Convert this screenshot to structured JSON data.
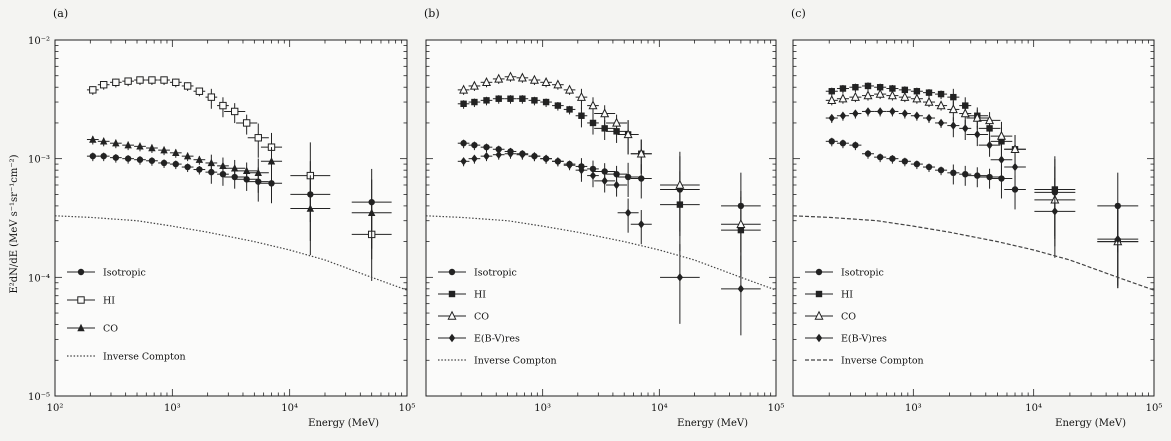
{
  "chart_data": [
    {
      "type": "scatter",
      "panel_label": "(a)",
      "xscale": "log",
      "yscale": "log",
      "xlim": [
        100,
        100000
      ],
      "ylim": [
        1e-05,
        0.01
      ],
      "xlabel": "Energy (MeV)",
      "ylabel": "E²dN/dE (MeV s⁻¹sr⁻¹cm⁻²)",
      "x_ticks": [
        "10²",
        "10³",
        "10⁴",
        "10⁵"
      ],
      "y_ticks": [
        "10⁻⁵",
        "10⁻⁴",
        "10⁻³",
        "10⁻²"
      ],
      "legend_position": "bottom-left",
      "series": [
        {
          "name": "Isotropic",
          "marker": "circle",
          "x": [
            210,
            260,
            330,
            420,
            530,
            670,
            850,
            1070,
            1350,
            1700,
            2150,
            2700,
            3400,
            4300,
            5400,
            7000,
            15000,
            50000
          ],
          "y": [
            0.00105,
            0.00105,
            0.00102,
            0.001,
            0.00098,
            0.00096,
            0.00092,
            0.0009,
            0.00085,
            0.00081,
            0.00077,
            0.00074,
            0.0007,
            0.00067,
            0.00064,
            0.00062,
            0.0005,
            0.00043
          ]
        },
        {
          "name": "HI",
          "marker": "open-square",
          "x": [
            210,
            260,
            330,
            420,
            530,
            670,
            850,
            1070,
            1350,
            1700,
            2150,
            2700,
            3400,
            4300,
            5400,
            7000,
            15000,
            50000
          ],
          "y": [
            0.0038,
            0.0042,
            0.0044,
            0.0045,
            0.0046,
            0.0046,
            0.0046,
            0.0044,
            0.0041,
            0.0037,
            0.0033,
            0.0028,
            0.0025,
            0.002,
            0.0015,
            0.00125,
            0.00072,
            0.00023
          ]
        },
        {
          "name": "CO",
          "marker": "triangle",
          "x": [
            210,
            260,
            330,
            420,
            530,
            670,
            850,
            1070,
            1350,
            1700,
            2150,
            2700,
            3400,
            4300,
            5400,
            7000,
            15000,
            50000
          ],
          "y": [
            0.00145,
            0.0014,
            0.00135,
            0.0013,
            0.00127,
            0.00123,
            0.00118,
            0.00112,
            0.00105,
            0.00098,
            0.00092,
            0.00087,
            0.00083,
            0.00079,
            0.00076,
            0.00095,
            0.00038,
            0.00035
          ]
        },
        {
          "name": "Inverse Compton",
          "style": "dotted-line",
          "x": [
            100,
            200,
            500,
            1000,
            2000,
            5000,
            10000,
            20000,
            50000,
            100000
          ],
          "y": [
            0.00033,
            0.00032,
            0.0003,
            0.00027,
            0.00024,
            0.0002,
            0.00017,
            0.00014,
            0.0001,
            7.8e-05
          ]
        }
      ]
    },
    {
      "type": "scatter",
      "panel_label": "(b)",
      "xscale": "log",
      "yscale": "log",
      "xlim": [
        100,
        100000
      ],
      "ylim": [
        1e-05,
        0.01
      ],
      "xlabel": "Energy (MeV)",
      "x_ticks": [
        "10³",
        "10⁴",
        "10⁵"
      ],
      "legend_position": "bottom-left",
      "series": [
        {
          "name": "Isotropic",
          "marker": "circle",
          "x": [
            210,
            260,
            330,
            420,
            530,
            670,
            850,
            1070,
            1350,
            1700,
            2150,
            2700,
            3400,
            4300,
            5400,
            7000,
            15000,
            50000
          ],
          "y": [
            0.00135,
            0.0013,
            0.00125,
            0.0012,
            0.00115,
            0.0011,
            0.00105,
            0.001,
            0.00095,
            0.0009,
            0.00086,
            0.00082,
            0.00078,
            0.00074,
            0.0007,
            0.00068,
            0.00055,
            0.0004
          ]
        },
        {
          "name": "HI",
          "marker": "square",
          "x": [
            210,
            260,
            330,
            420,
            530,
            670,
            850,
            1070,
            1350,
            1700,
            2150,
            2700,
            3400,
            4300,
            5400,
            7000,
            15000,
            50000
          ],
          "y": [
            0.0029,
            0.003,
            0.0031,
            0.0032,
            0.0032,
            0.0032,
            0.0031,
            0.003,
            0.0028,
            0.0026,
            0.0023,
            0.002,
            0.0018,
            0.0017,
            0.0016,
            0.0011,
            0.00041,
            0.00025
          ]
        },
        {
          "name": "CO",
          "marker": "open-triangle",
          "x": [
            210,
            260,
            330,
            420,
            530,
            670,
            850,
            1070,
            1350,
            1700,
            2150,
            2700,
            3400,
            4300,
            5400,
            7000,
            15000,
            50000
          ],
          "y": [
            0.0038,
            0.0041,
            0.0044,
            0.0047,
            0.0049,
            0.0048,
            0.0046,
            0.0044,
            0.0042,
            0.0038,
            0.0033,
            0.0028,
            0.0024,
            0.002,
            0.0016,
            0.0011,
            0.0006,
            0.00028
          ]
        },
        {
          "name": "E(B-V)res",
          "marker": "diamond",
          "x": [
            210,
            260,
            330,
            420,
            530,
            670,
            850,
            1070,
            1350,
            1700,
            2150,
            2700,
            3400,
            4300,
            5400,
            7000,
            15000,
            50000
          ],
          "y": [
            0.00095,
            0.001,
            0.00105,
            0.00108,
            0.0011,
            0.00108,
            0.00105,
            0.001,
            0.00095,
            0.00088,
            0.0008,
            0.00072,
            0.00065,
            0.0006,
            0.00035,
            0.00028,
            0.0001,
            8e-05
          ]
        },
        {
          "name": "Inverse Compton",
          "style": "dotted-line",
          "x": [
            100,
            200,
            500,
            1000,
            2000,
            5000,
            10000,
            20000,
            50000,
            100000
          ],
          "y": [
            0.00033,
            0.00032,
            0.0003,
            0.00027,
            0.00024,
            0.0002,
            0.00017,
            0.00014,
            0.0001,
            7.8e-05
          ]
        }
      ]
    },
    {
      "type": "scatter",
      "panel_label": "(c)",
      "xscale": "log",
      "yscale": "log",
      "xlim": [
        100,
        100000
      ],
      "ylim": [
        1e-05,
        0.01
      ],
      "xlabel": "Energy (MeV)",
      "x_ticks": [
        "10³",
        "10⁴",
        "10⁵"
      ],
      "legend_position": "bottom-left",
      "series": [
        {
          "name": "Isotropic",
          "marker": "circle",
          "x": [
            210,
            260,
            330,
            420,
            530,
            670,
            850,
            1070,
            1350,
            1700,
            2150,
            2700,
            3400,
            4300,
            5400,
            7000,
            15000,
            50000
          ],
          "y": [
            0.0014,
            0.00135,
            0.0013,
            0.0011,
            0.00103,
            0.001,
            0.00095,
            0.0009,
            0.00085,
            0.0008,
            0.00076,
            0.00074,
            0.00072,
            0.0007,
            0.00068,
            0.00055,
            0.00052,
            0.0004
          ]
        },
        {
          "name": "HI",
          "marker": "square",
          "x": [
            210,
            260,
            330,
            420,
            530,
            670,
            850,
            1070,
            1350,
            1700,
            2150,
            2700,
            3400,
            4300,
            5400,
            7000,
            15000,
            50000
          ],
          "y": [
            0.0037,
            0.0039,
            0.004,
            0.0041,
            0.004,
            0.0039,
            0.0038,
            0.0037,
            0.0036,
            0.0035,
            0.0033,
            0.0028,
            0.0023,
            0.0018,
            0.0014,
            0.0012,
            0.00055,
            0.0002
          ]
        },
        {
          "name": "CO",
          "marker": "open-triangle",
          "x": [
            210,
            260,
            330,
            420,
            530,
            670,
            850,
            1070,
            1350,
            1700,
            2150,
            2700,
            3400,
            4300,
            5400,
            7000,
            15000,
            50000
          ],
          "y": [
            0.0031,
            0.0032,
            0.0033,
            0.0034,
            0.0035,
            0.0034,
            0.0033,
            0.0032,
            0.003,
            0.0028,
            0.0026,
            0.0024,
            0.0022,
            0.0021,
            0.00155,
            0.0012,
            0.00045,
            0.0002
          ]
        },
        {
          "name": "E(B-V)res",
          "marker": "diamond",
          "x": [
            210,
            260,
            330,
            420,
            530,
            670,
            850,
            1070,
            1350,
            1700,
            2150,
            2700,
            3400,
            4300,
            5400,
            7000,
            15000,
            50000
          ],
          "y": [
            0.0022,
            0.0023,
            0.0024,
            0.0025,
            0.0025,
            0.0025,
            0.0024,
            0.0023,
            0.0022,
            0.002,
            0.0019,
            0.0018,
            0.0016,
            0.0013,
            0.00098,
            0.00085,
            0.00036,
            0.00021
          ]
        },
        {
          "name": "Inverse Compton",
          "style": "dashed-line",
          "x": [
            100,
            200,
            500,
            1000,
            2000,
            5000,
            10000,
            20000,
            50000,
            100000
          ],
          "y": [
            0.00033,
            0.00032,
            0.0003,
            0.00027,
            0.00024,
            0.0002,
            0.00017,
            0.00014,
            0.0001,
            7.8e-05
          ]
        }
      ]
    }
  ]
}
